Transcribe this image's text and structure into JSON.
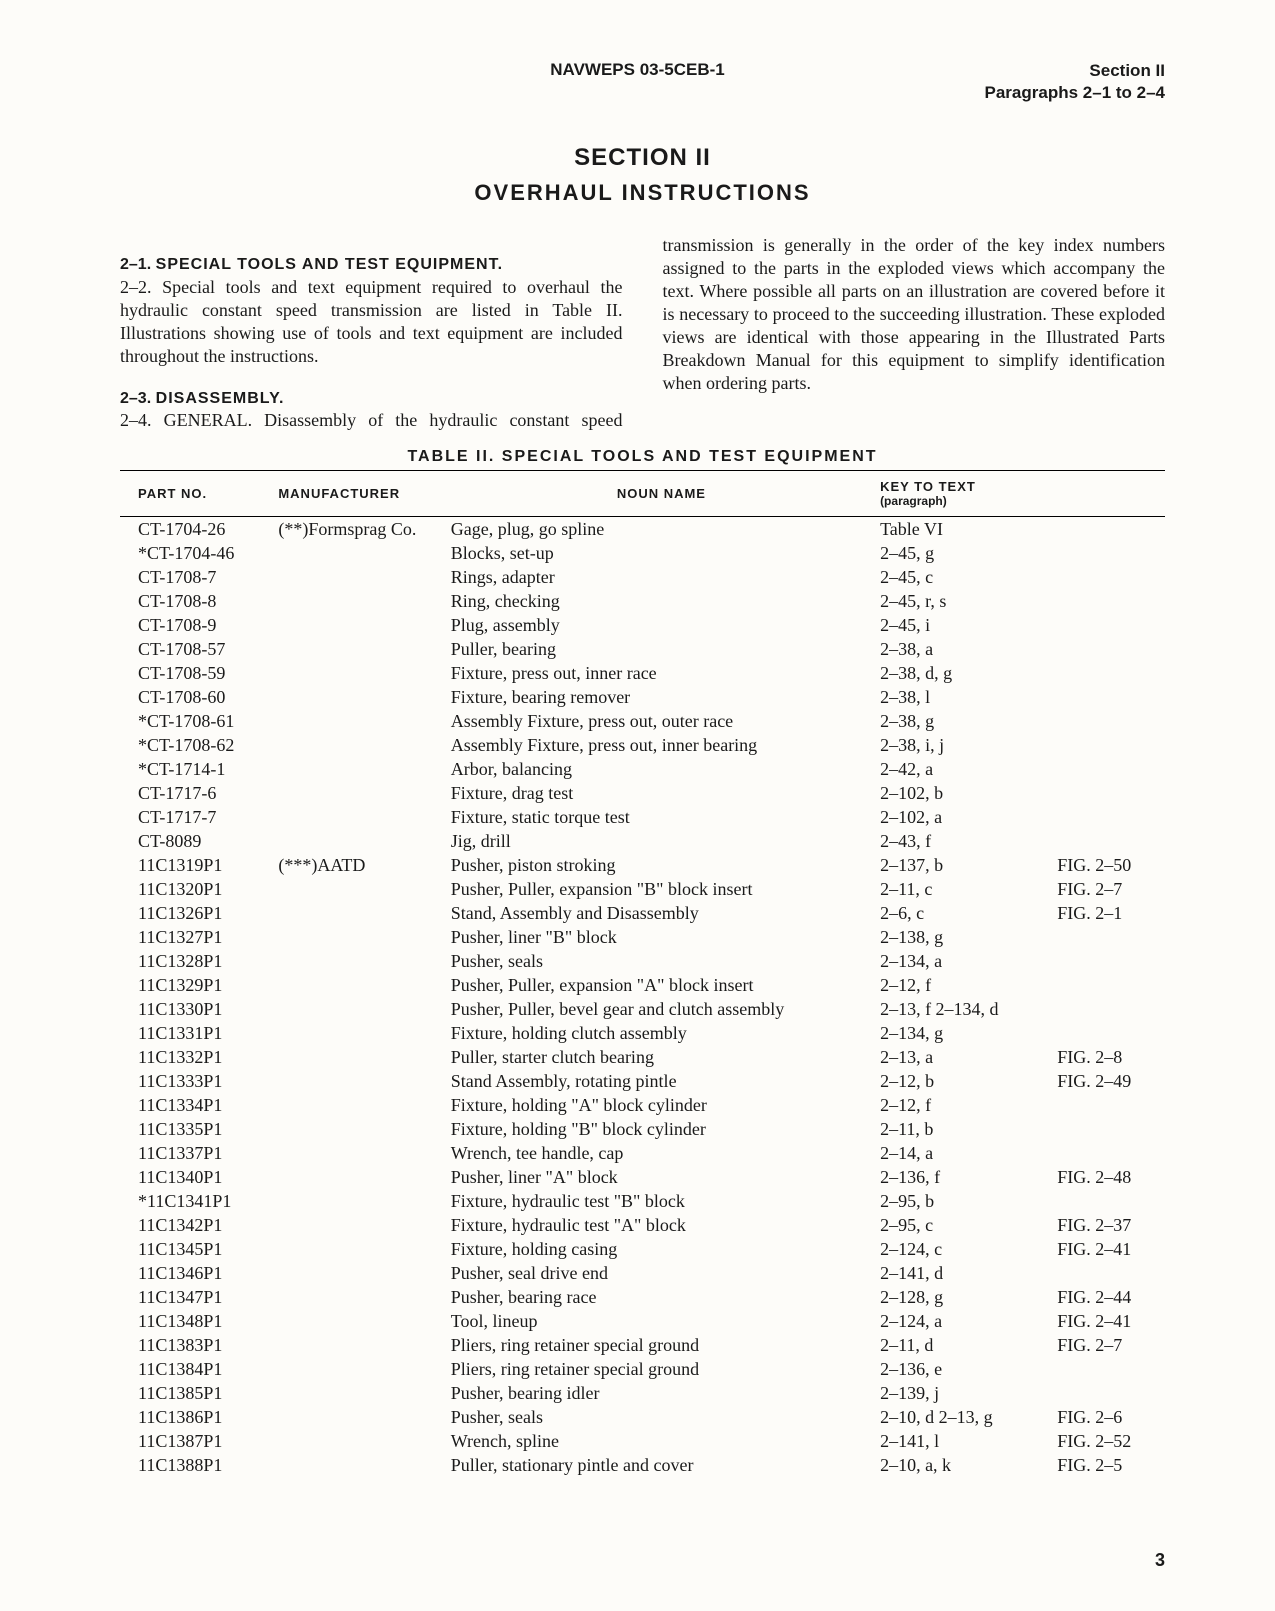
{
  "header": {
    "doc_id": "NAVWEPS 03-5CEB-1",
    "section_label": "Section II",
    "paragraph_range": "Paragraphs 2–1 to 2–4"
  },
  "titles": {
    "section": "SECTION II",
    "subtitle": "OVERHAUL INSTRUCTIONS"
  },
  "paragraphs": {
    "p21_num": "2–1.",
    "p21_heading": "SPECIAL TOOLS AND TEST EQUIPMENT.",
    "p22": "2–2. Special tools and text equipment required to overhaul the hydraulic constant speed transmission are listed in Table II. Illustrations showing use of tools and text equipment are included throughout the instructions.",
    "p23_num": "2–3.",
    "p23_heading": "DISASSEMBLY.",
    "p24": "2–4. GENERAL. Disassembly of the hydraulic constant speed transmission is generally in the order of the key index numbers assigned to the parts in the exploded views which accompany the text. Where possible all parts on an illustration are covered before it is necessary to proceed to the succeeding illustration. These exploded views are identical with those appearing in the Illustrated Parts Breakdown Manual for this equipment to simplify identification when ordering parts."
  },
  "table": {
    "title": "TABLE II.   SPECIAL TOOLS AND TEST EQUIPMENT",
    "columns": {
      "part": "PART NO.",
      "mfr": "MANUFACTURER",
      "noun": "NOUN NAME",
      "key": "KEY TO TEXT",
      "key_sub": "(paragraph)"
    },
    "rows": [
      {
        "part": "CT-1704-26",
        "mfr": "(**)Formsprag Co.",
        "noun": "Gage, plug, go spline",
        "key": "Table VI",
        "fig": ""
      },
      {
        "part": "*CT-1704-46",
        "mfr": "",
        "noun": "Blocks, set-up",
        "key": "2–45, g",
        "fig": ""
      },
      {
        "part": "CT-1708-7",
        "mfr": "",
        "noun": "Rings, adapter",
        "key": "2–45, c",
        "fig": ""
      },
      {
        "part": "CT-1708-8",
        "mfr": "",
        "noun": "Ring, checking",
        "key": "2–45, r, s",
        "fig": ""
      },
      {
        "part": "CT-1708-9",
        "mfr": "",
        "noun": "Plug, assembly",
        "key": "2–45, i",
        "fig": ""
      },
      {
        "part": "CT-1708-57",
        "mfr": "",
        "noun": "Puller, bearing",
        "key": "2–38, a",
        "fig": ""
      },
      {
        "part": "CT-1708-59",
        "mfr": "",
        "noun": "Fixture, press out, inner race",
        "key": "2–38, d, g",
        "fig": ""
      },
      {
        "part": "CT-1708-60",
        "mfr": "",
        "noun": "Fixture, bearing remover",
        "key": "2–38, l",
        "fig": ""
      },
      {
        "part": "*CT-1708-61",
        "mfr": "",
        "noun": "Assembly Fixture, press out, outer race",
        "key": "2–38, g",
        "fig": ""
      },
      {
        "part": "*CT-1708-62",
        "mfr": "",
        "noun": "Assembly Fixture, press out, inner bearing",
        "key": "2–38, i, j",
        "fig": ""
      },
      {
        "part": "*CT-1714-1",
        "mfr": "",
        "noun": "Arbor, balancing",
        "key": "2–42, a",
        "fig": ""
      },
      {
        "part": "CT-1717-6",
        "mfr": "",
        "noun": "Fixture, drag test",
        "key": "2–102, b",
        "fig": ""
      },
      {
        "part": "CT-1717-7",
        "mfr": "",
        "noun": "Fixture, static torque test",
        "key": "2–102, a",
        "fig": ""
      },
      {
        "part": "CT-8089",
        "mfr": "",
        "noun": "Jig, drill",
        "key": "2–43, f",
        "fig": ""
      },
      {
        "part": "11C1319P1",
        "mfr": "(***)AATD",
        "noun": "Pusher, piston stroking",
        "key": "2–137, b",
        "fig": "FIG. 2–50"
      },
      {
        "part": "11C1320P1",
        "mfr": "",
        "noun": "Pusher, Puller, expansion \"B\" block insert",
        "key": "2–11, c",
        "fig": "FIG. 2–7"
      },
      {
        "part": "11C1326P1",
        "mfr": "",
        "noun": "Stand, Assembly and Disassembly",
        "key": "2–6, c",
        "fig": "FIG. 2–1"
      },
      {
        "part": "11C1327P1",
        "mfr": "",
        "noun": "Pusher, liner \"B\" block",
        "key": "2–138, g",
        "fig": ""
      },
      {
        "part": "11C1328P1",
        "mfr": "",
        "noun": "Pusher, seals",
        "key": "2–134, a",
        "fig": ""
      },
      {
        "part": "11C1329P1",
        "mfr": "",
        "noun": "Pusher, Puller, expansion \"A\" block insert",
        "key": "2–12, f",
        "fig": ""
      },
      {
        "part": "11C1330P1",
        "mfr": "",
        "noun": "Pusher, Puller, bevel gear and clutch assembly",
        "key": "2–13, f   2–134, d",
        "fig": ""
      },
      {
        "part": "11C1331P1",
        "mfr": "",
        "noun": "Fixture, holding clutch assembly",
        "key": "2–134, g",
        "fig": ""
      },
      {
        "part": "11C1332P1",
        "mfr": "",
        "noun": "Puller, starter clutch bearing",
        "key": "2–13, a",
        "fig": "FIG. 2–8"
      },
      {
        "part": "11C1333P1",
        "mfr": "",
        "noun": "Stand Assembly, rotating pintle",
        "key": "2–12, b",
        "fig": "FIG. 2–49"
      },
      {
        "part": "11C1334P1",
        "mfr": "",
        "noun": "Fixture, holding \"A\" block cylinder",
        "key": "2–12, f",
        "fig": ""
      },
      {
        "part": "11C1335P1",
        "mfr": "",
        "noun": "Fixture, holding \"B\" block cylinder",
        "key": "2–11, b",
        "fig": ""
      },
      {
        "part": "11C1337P1",
        "mfr": "",
        "noun": "Wrench, tee handle, cap",
        "key": "2–14, a",
        "fig": ""
      },
      {
        "part": "11C1340P1",
        "mfr": "",
        "noun": "Pusher, liner \"A\" block",
        "key": "2–136, f",
        "fig": "FIG. 2–48"
      },
      {
        "part": "*11C1341P1",
        "mfr": "",
        "noun": "Fixture, hydraulic test \"B\" block",
        "key": "2–95, b",
        "fig": ""
      },
      {
        "part": "11C1342P1",
        "mfr": "",
        "noun": "Fixture, hydraulic test \"A\" block",
        "key": "2–95, c",
        "fig": "FIG. 2–37"
      },
      {
        "part": "11C1345P1",
        "mfr": "",
        "noun": "Fixture, holding casing",
        "key": "2–124, c",
        "fig": "FIG. 2–41"
      },
      {
        "part": "11C1346P1",
        "mfr": "",
        "noun": "Pusher, seal drive end",
        "key": "2–141, d",
        "fig": ""
      },
      {
        "part": "11C1347P1",
        "mfr": "",
        "noun": "Pusher, bearing race",
        "key": "2–128, g",
        "fig": "FIG. 2–44"
      },
      {
        "part": "11C1348P1",
        "mfr": "",
        "noun": "Tool, lineup",
        "key": "2–124, a",
        "fig": "FIG. 2–41"
      },
      {
        "part": "11C1383P1",
        "mfr": "",
        "noun": "Pliers, ring retainer special ground",
        "key": "2–11, d",
        "fig": "FIG. 2–7"
      },
      {
        "part": "11C1384P1",
        "mfr": "",
        "noun": "Pliers, ring retainer special ground",
        "key": "2–136, e",
        "fig": ""
      },
      {
        "part": "11C1385P1",
        "mfr": "",
        "noun": "Pusher, bearing idler",
        "key": "2–139, j",
        "fig": ""
      },
      {
        "part": "11C1386P1",
        "mfr": "",
        "noun": "Pusher, seals",
        "key": "2–10, d   2–13, g",
        "fig": "FIG. 2–6"
      },
      {
        "part": "11C1387P1",
        "mfr": "",
        "noun": "Wrench, spline",
        "key": "2–141, l",
        "fig": "FIG. 2–52"
      },
      {
        "part": "11C1388P1",
        "mfr": "",
        "noun": "Puller, stationary pintle and cover",
        "key": "2–10, a, k",
        "fig": "FIG. 2–5"
      }
    ]
  },
  "page_number": "3"
}
